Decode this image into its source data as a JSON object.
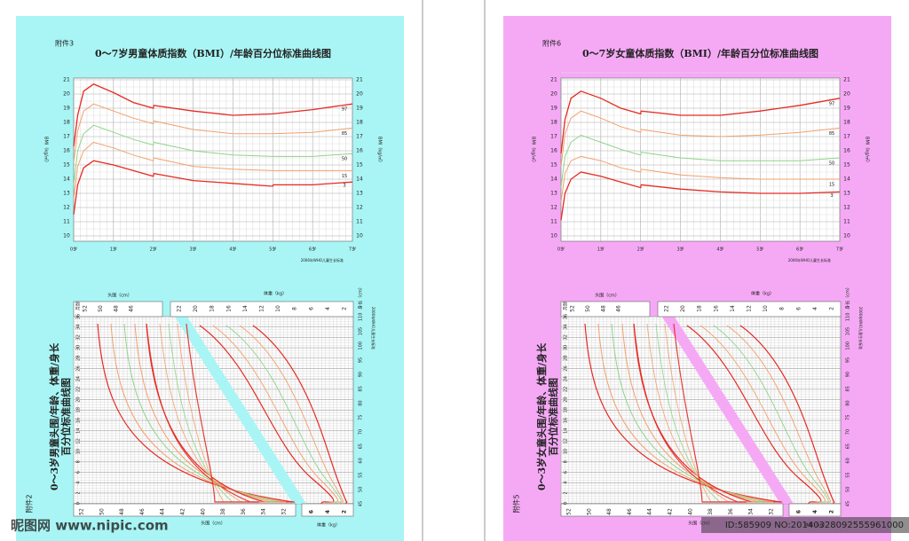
{
  "pages": [
    {
      "background": "#a9f5f5",
      "attachment": "附件3",
      "title": "0～7岁男童体质指数（BMI）/年龄百分位标准曲线图",
      "bmi_axis_label": "BMI（kg/㎡）",
      "bmi_ticks": [
        10,
        11,
        12,
        13,
        14,
        15,
        16,
        17,
        18,
        19,
        20,
        21
      ],
      "age_labels": [
        "0岁",
        "1岁",
        "2岁",
        "3岁",
        "4岁",
        "5岁",
        "6岁",
        "7岁"
      ],
      "percentiles": [
        97,
        85,
        50,
        15,
        3
      ],
      "source": "2006年WHO儿童生长标准",
      "lower_attachment": "附件2",
      "lower_title": [
        "0～3岁男童头围/年龄、体重/身长",
        "百分位标准曲线图"
      ],
      "head_label": "头围（cm）",
      "head_top_ticks": [
        52,
        50,
        48,
        46
      ],
      "head_bottom_ticks": [
        52,
        50,
        48,
        46,
        44,
        42,
        40,
        38,
        36,
        34,
        32
      ],
      "weight_label": "体重（kg）",
      "weight_top_ticks": [
        22,
        20,
        18,
        16,
        14,
        12,
        10,
        8,
        6,
        4,
        2
      ],
      "weight_bottom_ticks": [
        6,
        4,
        2
      ],
      "length_label": "身长（cm）",
      "length_ticks": [
        110,
        105,
        100,
        95,
        90,
        85,
        80,
        75,
        70,
        65,
        60,
        55,
        50,
        45
      ],
      "month_label": "月龄",
      "month_ticks": [
        36,
        34,
        32,
        30,
        28,
        26,
        24,
        22,
        20,
        18,
        16,
        14,
        12,
        10,
        8,
        6,
        4,
        2,
        0
      ]
    },
    {
      "background": "#f5a9f5",
      "attachment": "附件6",
      "title": "0～7岁女童体质指数（BMI）/年龄百分位标准曲线图",
      "bmi_axis_label": "BMI（kg/㎡）",
      "bmi_ticks": [
        10,
        11,
        12,
        13,
        14,
        15,
        16,
        17,
        18,
        19,
        20,
        21
      ],
      "age_labels": [
        "0岁",
        "1岁",
        "2岁",
        "3岁",
        "4岁",
        "5岁",
        "6岁",
        "7岁"
      ],
      "percentiles": [
        97,
        85,
        50,
        15,
        3
      ],
      "source": "2006年WHO儿童生长标准",
      "lower_attachment": "附件5",
      "lower_title": [
        "0～3岁女童头围/年龄、体重/身长",
        "百分位标准曲线图"
      ],
      "head_label": "头围（cm）",
      "head_top_ticks": [
        52,
        50,
        48,
        46
      ],
      "head_bottom_ticks": [
        52,
        50,
        48,
        46,
        44,
        42,
        40,
        38,
        36,
        34,
        32
      ],
      "weight_label": "体重（kg）",
      "weight_top_ticks": [
        22,
        20,
        18,
        16,
        14,
        12,
        10,
        8,
        6,
        4,
        2
      ],
      "weight_bottom_ticks": [
        6,
        4,
        2
      ],
      "length_label": "身长（cm）",
      "length_ticks": [
        110,
        105,
        100,
        95,
        90,
        85,
        80,
        75,
        70,
        65,
        60,
        55,
        50,
        45
      ],
      "month_label": "月龄",
      "month_ticks": [
        36,
        34,
        32,
        30,
        28,
        26,
        24,
        22,
        20,
        18,
        16,
        14,
        12,
        10,
        8,
        6,
        4,
        2,
        0
      ]
    }
  ],
  "watermark": "昵图网 www.nipic.com",
  "image_id": "ID:585909 NO:20140328092555961000"
}
